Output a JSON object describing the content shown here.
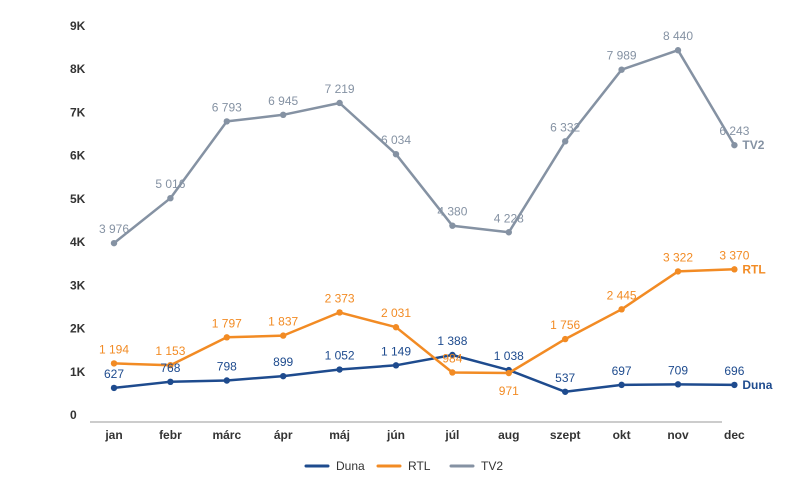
{
  "chart_data": {
    "type": "line",
    "categories": [
      "jan",
      "febr",
      "márc",
      "ápr",
      "máj",
      "jún",
      "júl",
      "aug",
      "szept",
      "okt",
      "nov",
      "dec"
    ],
    "ylim": [
      0,
      9000
    ],
    "yticks": [
      0,
      1000,
      2000,
      3000,
      4000,
      5000,
      6000,
      7000,
      8000,
      9000
    ],
    "ytick_labels": [
      "0",
      "1K",
      "2K",
      "3K",
      "4K",
      "5K",
      "6K",
      "7K",
      "8K",
      "9K"
    ],
    "grid": false,
    "legend_position": "bottom",
    "series": [
      {
        "name": "Duna",
        "color": "#1e4b8e",
        "values": [
          627,
          768,
          798,
          899,
          1052,
          1149,
          1388,
          1038,
          537,
          697,
          709,
          696
        ],
        "labels": [
          "627",
          "768",
          "798",
          "899",
          "1 052",
          "1 149",
          "1 388",
          "1 038",
          "537",
          "697",
          "709",
          "696"
        ]
      },
      {
        "name": "RTL",
        "color": "#f28b24",
        "values": [
          1194,
          1153,
          1797,
          1837,
          2373,
          2031,
          984,
          971,
          1756,
          2445,
          3322,
          3370
        ],
        "labels": [
          "1 194",
          "1 153",
          "1 797",
          "1 837",
          "2 373",
          "2 031",
          "984",
          "971",
          "1 756",
          "2 445",
          "3 322",
          "3 370"
        ]
      },
      {
        "name": "TV2",
        "color": "#8592a3",
        "values": [
          3976,
          5016,
          6793,
          6945,
          7219,
          6034,
          4380,
          4228,
          6332,
          7989,
          8440,
          6243
        ],
        "labels": [
          "3 976",
          "5 016",
          "6 793",
          "6 945",
          "7 219",
          "6 034",
          "4 380",
          "4 228",
          "6 332",
          "7 989",
          "8 440",
          "6 243"
        ]
      }
    ]
  }
}
